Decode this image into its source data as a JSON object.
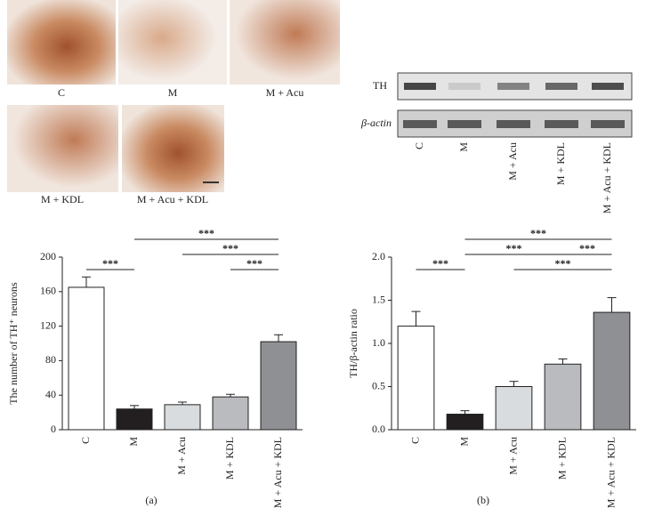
{
  "micrographs": {
    "labels": [
      "C",
      "M",
      "M + Acu",
      "M + KDL",
      "M + Acu + KDL"
    ]
  },
  "western_blot": {
    "rows": [
      "TH",
      "β-actin"
    ],
    "lanes": [
      "C",
      "M",
      "M + Acu",
      "M + KDL",
      "M + Acu + KDL"
    ]
  },
  "chart_data": [
    {
      "type": "bar",
      "caption": "(a)",
      "ylabel": "The number of TH⁺ neurons",
      "categories": [
        "C",
        "M",
        "M + Acu",
        "M + KDL",
        "M + Acu + KDL"
      ],
      "values": [
        165,
        24,
        29,
        38,
        102
      ],
      "errors": [
        12,
        4,
        3,
        3,
        8
      ],
      "colors": [
        "#ffffff",
        "#231f20",
        "#d9dcde",
        "#b9bbbe",
        "#8e9093"
      ],
      "ylim": [
        0,
        200
      ],
      "yticks": [
        0,
        40,
        80,
        120,
        160,
        200
      ],
      "significance": [
        {
          "groups": [
            "C",
            "M"
          ],
          "label": "***"
        },
        {
          "groups": [
            "M + KDL",
            "M + Acu + KDL"
          ],
          "label": "***"
        },
        {
          "groups": [
            "M + Acu",
            "M + Acu + KDL"
          ],
          "label": "***"
        },
        {
          "groups": [
            "M",
            "M + Acu + KDL"
          ],
          "label": "***"
        }
      ]
    },
    {
      "type": "bar",
      "caption": "(b)",
      "ylabel": "TH/β-actin ratio",
      "categories": [
        "C",
        "M",
        "M + Acu",
        "M + KDL",
        "M + Acu + KDL"
      ],
      "values": [
        1.2,
        0.18,
        0.5,
        0.76,
        1.36
      ],
      "errors": [
        0.17,
        0.04,
        0.06,
        0.06,
        0.17
      ],
      "colors": [
        "#ffffff",
        "#231f20",
        "#d9dcde",
        "#b9bbbe",
        "#8e9093"
      ],
      "ylim": [
        0,
        2
      ],
      "yticks": [
        {
          "value": 0,
          "label": "0.0"
        },
        0.5,
        {
          "value": 1,
          "label": "1.0"
        },
        1.5,
        {
          "value": 2,
          "label": "2.0"
        }
      ],
      "significance": [
        {
          "groups": [
            "C",
            "M"
          ],
          "label": "***"
        },
        {
          "groups": [
            "M + Acu",
            "M + Acu + KDL"
          ],
          "label": "***"
        },
        {
          "groups": [
            "M",
            "M + KDL"
          ],
          "label": "***"
        },
        {
          "groups": [
            "M + KDL",
            "M + Acu + KDL"
          ],
          "label": "***"
        },
        {
          "groups": [
            "M",
            "M + Acu + KDL"
          ],
          "label": "***"
        }
      ]
    }
  ]
}
